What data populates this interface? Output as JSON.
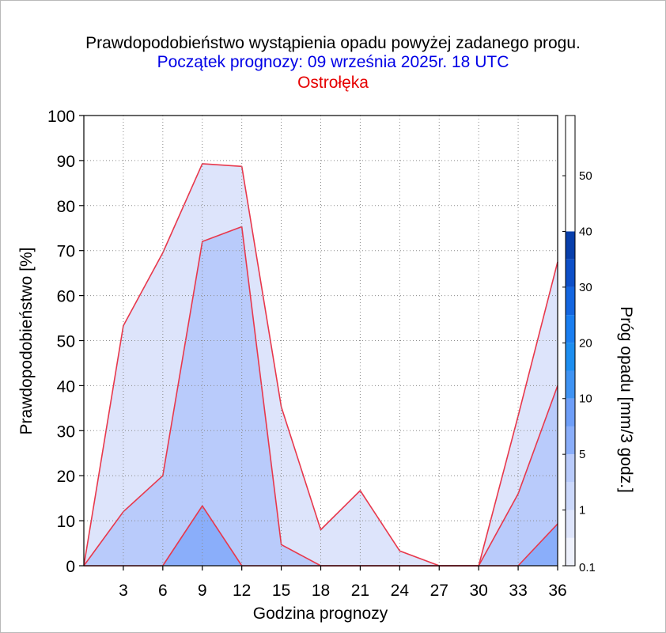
{
  "chart_data": {
    "type": "area",
    "title": "Prawdopodobieństwo wystąpienia opadu powyżej zadanego progu.",
    "subtitle": "Początek prognozy: 09 września 2025r. 18 UTC",
    "location": "Ostrołęka",
    "xlabel": "Godzina prognozy",
    "ylabel": "Prawdopodobieństwo [%]",
    "xlim": [
      0,
      36
    ],
    "ylim": [
      0,
      100
    ],
    "x_ticks": [
      3,
      6,
      9,
      12,
      15,
      18,
      21,
      24,
      27,
      30,
      33,
      36
    ],
    "y_ticks": [
      0,
      10,
      20,
      30,
      40,
      50,
      60,
      70,
      80,
      90,
      100
    ],
    "grid": true,
    "x": [
      0,
      3,
      6,
      9,
      12,
      15,
      18,
      21,
      24,
      27,
      30,
      33,
      36
    ],
    "series": [
      {
        "name": "0.1",
        "color": "#dde4fb",
        "values": [
          0,
          53.3,
          69.5,
          89.3,
          88.7,
          35.3,
          8.0,
          16.7,
          3.3,
          0,
          0,
          33.3,
          67.5
        ]
      },
      {
        "name": "1",
        "color": "#b9cbfb",
        "values": [
          0,
          12.0,
          20.0,
          72.0,
          75.3,
          4.7,
          0,
          0,
          0,
          0,
          0,
          16.0,
          40.0
        ]
      },
      {
        "name": "5",
        "color": "#8aaefa",
        "values": [
          0,
          0,
          0,
          13.3,
          0,
          0,
          0,
          0,
          0,
          0,
          0,
          0,
          9.3
        ]
      },
      {
        "name": "10",
        "color": "#6e9ef8",
        "values": [
          0,
          0,
          0,
          0,
          0,
          0,
          0,
          0,
          0,
          0,
          0,
          0,
          0
        ]
      },
      {
        "name": "20",
        "color": "#1d8ef0",
        "values": [
          0,
          0,
          0,
          0,
          0,
          0,
          0,
          0,
          0,
          0,
          0,
          0,
          0
        ]
      },
      {
        "name": "30",
        "color": "#1a7ef0",
        "values": [
          0,
          0,
          0,
          0,
          0,
          0,
          0,
          0,
          0,
          0,
          0,
          0,
          0
        ]
      },
      {
        "name": "40",
        "color": "#1466e0",
        "values": [
          0,
          0,
          0,
          0,
          0,
          0,
          0,
          0,
          0,
          0,
          0,
          0,
          0
        ]
      },
      {
        "name": "50",
        "color": "#0d4fc8",
        "values": [
          0,
          0,
          0,
          0,
          0,
          0,
          0,
          0,
          0,
          0,
          0,
          0,
          0
        ]
      }
    ],
    "colorbar": {
      "label": "Próg opadu [mm/3 godz.]",
      "levels": [
        "0.1",
        "1",
        "5",
        "10",
        "20",
        "30",
        "40",
        "50"
      ],
      "colors": [
        "#eef1fc",
        "#dde4fb",
        "#cbd8fb",
        "#b9cbfb",
        "#8aaefa",
        "#6e9ef8",
        "#3f93f3",
        "#1d8ef0",
        "#1a7ef0",
        "#1466e0",
        "#0d4fc8",
        "#083fab"
      ]
    },
    "colors": {
      "title": "#000000",
      "subtitle": "#0000e6",
      "location": "#e60000",
      "series_line": "#e8384c",
      "grid": "#8a8a8a"
    }
  }
}
